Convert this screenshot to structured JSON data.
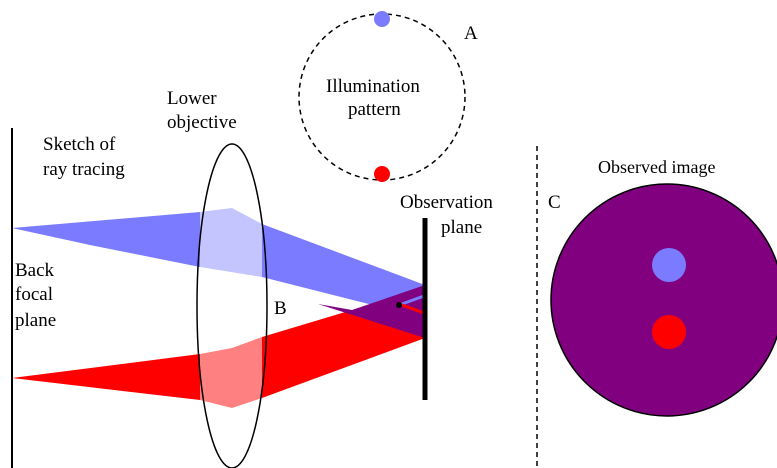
{
  "labels": {
    "panel_a": "A",
    "panel_b": "B",
    "panel_c": "C",
    "illumination_line1": "Illumination",
    "illumination_line2": "pattern",
    "lower_objective_line1": "Lower",
    "lower_objective_line2": "objective",
    "sketch_line1": "Sketch of",
    "sketch_line2": "ray tracing",
    "observation_line1": "Observation",
    "observation_line2": "plane",
    "back_focal_line1": "Back",
    "back_focal_line2": "focal",
    "back_focal_line3": "plane",
    "observed_image": "Observed image"
  },
  "colors": {
    "blue": "#7b7bff",
    "blue_light": "#c4c4ff",
    "red": "#ff0000",
    "red_light": "#ff8080",
    "purple": "#800080",
    "line": "#000000"
  }
}
